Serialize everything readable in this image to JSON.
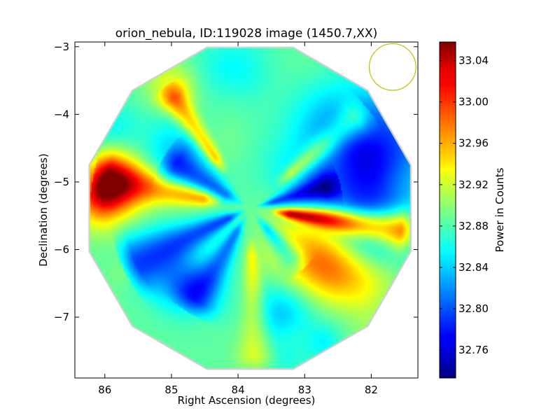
{
  "chart_data": {
    "type": "heatmap",
    "title": "orion_nebula, ID:119028 image (1450.7,XX)",
    "xlabel": "Right Ascension (degrees)",
    "ylabel": "Declination (degrees)",
    "xlim": [
      86.45,
      81.3
    ],
    "ylim": [
      -7.9,
      -2.93
    ],
    "x_ticks": [
      86,
      85,
      84,
      83,
      82
    ],
    "x_tick_labels": [
      "86",
      "85",
      "84",
      "83",
      "82"
    ],
    "y_ticks": [
      -3,
      -4,
      -5,
      -6,
      -7
    ],
    "y_tick_labels": [
      "−3",
      "−4",
      "−5",
      "−6",
      "−7"
    ],
    "colorbar": {
      "label": "Power in Counts",
      "range": [
        32.733,
        33.058
      ],
      "ticks": [
        32.76,
        32.8,
        32.84,
        32.88,
        32.92,
        32.96,
        33.0,
        33.04
      ],
      "tick_labels": [
        "32.76",
        "32.80",
        "32.84",
        "32.88",
        "32.92",
        "32.96",
        "33.00",
        "33.04"
      ],
      "colormap": "jet"
    },
    "map": {
      "center_ra": 83.82,
      "center_dec": -5.39,
      "radius_deg": 2.5,
      "outline_sides": 12,
      "base_value": 32.885,
      "beam": {
        "ra": 81.68,
        "dec": -3.3,
        "radius_deg": 0.35,
        "color": "#bfbf00"
      },
      "streaks": [
        {
          "pa_deg": 98,
          "value": 33.03,
          "width_deg": 5,
          "r_start": 0.3,
          "r_end": 2.5
        },
        {
          "pa_deg": 282,
          "value": 32.98,
          "width_deg": 7,
          "r_start": 0.4,
          "r_end": 2.4
        },
        {
          "pa_deg": 325,
          "value": 32.96,
          "width_deg": 4,
          "r_start": 0.6,
          "r_end": 2.2
        },
        {
          "pa_deg": 50,
          "value": 32.95,
          "width_deg": 5,
          "r_start": 0.5,
          "r_end": 2.3
        },
        {
          "pa_deg": 178,
          "value": 32.93,
          "width_deg": 5,
          "r_start": 0.4,
          "r_end": 2.4
        },
        {
          "pa_deg": 75,
          "value": 32.8,
          "width_deg": 7,
          "r_start": 0.05,
          "r_end": 1.4
        },
        {
          "pa_deg": 245,
          "value": 32.8,
          "width_deg": 9,
          "r_start": 0.05,
          "r_end": 2.1
        },
        {
          "pa_deg": 300,
          "value": 32.82,
          "width_deg": 10,
          "r_start": 0.1,
          "r_end": 1.5
        },
        {
          "pa_deg": 210,
          "value": 32.82,
          "width_deg": 8,
          "r_start": 0.1,
          "r_end": 1.8
        },
        {
          "pa_deg": 140,
          "value": 32.82,
          "width_deg": 8,
          "r_start": 0.1,
          "r_end": 1.2
        }
      ],
      "blobs": [
        {
          "ra": 82.3,
          "dec": -5.0,
          "r": 0.7,
          "value": 32.81
        },
        {
          "ra": 81.8,
          "dec": -4.4,
          "r": 0.55,
          "value": 32.82
        },
        {
          "ra": 81.9,
          "dec": -5.6,
          "r": 0.4,
          "value": 32.83
        },
        {
          "ra": 84.8,
          "dec": -6.5,
          "r": 0.3,
          "value": 32.81
        },
        {
          "ra": 85.0,
          "dec": -4.6,
          "r": 0.35,
          "value": 32.83
        },
        {
          "ra": 83.35,
          "dec": -6.9,
          "r": 0.35,
          "value": 32.83
        },
        {
          "ra": 84.2,
          "dec": -3.35,
          "r": 0.35,
          "value": 32.86
        },
        {
          "ra": 85.85,
          "dec": -4.25,
          "r": 0.3,
          "value": 32.85
        },
        {
          "ra": 82.65,
          "dec": -4.05,
          "r": 0.4,
          "value": 32.86
        },
        {
          "ra": 83.0,
          "dec": -5.95,
          "r": 0.45,
          "value": 32.97
        },
        {
          "ra": 82.6,
          "dec": -6.3,
          "r": 0.35,
          "value": 32.95
        },
        {
          "ra": 86.0,
          "dec": -5.15,
          "r": 0.35,
          "value": 33.04
        },
        {
          "ra": 85.0,
          "dec": -3.6,
          "r": 0.25,
          "value": 32.94
        },
        {
          "ra": 82.1,
          "dec": -6.5,
          "r": 0.35,
          "value": 32.93
        }
      ]
    }
  }
}
